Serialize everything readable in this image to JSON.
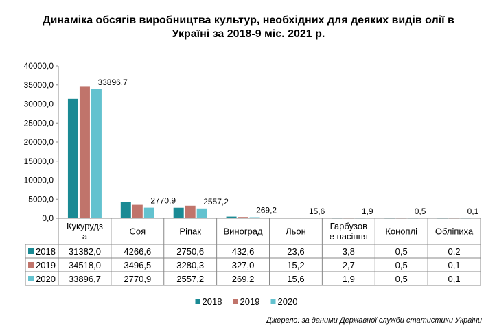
{
  "chart_data": {
    "type": "bar",
    "title_line1": "Динаміка обсягів виробництва культур, необхідних для деяких видів олії в",
    "title_line2": "Україні за 2018-9 міс. 2021 р.",
    "categories": [
      "Кукурудз а",
      "Соя",
      "Ріпак",
      "Виноград",
      "Льон",
      "Гарбузов е насіння",
      "Коноплі",
      "Обліпиха"
    ],
    "category_lines": [
      [
        "Кукурудз",
        "а"
      ],
      [
        "Соя"
      ],
      [
        "Ріпак"
      ],
      [
        "Виноград"
      ],
      [
        "Льон"
      ],
      [
        "Гарбузов",
        "е насіння"
      ],
      [
        "Коноплі"
      ],
      [
        "Обліпиха"
      ]
    ],
    "series": [
      {
        "name": "2018",
        "color": "#1a8a94",
        "values": [
          31382.0,
          4266.6,
          2750.6,
          432.6,
          23.6,
          3.8,
          0.5,
          0.2
        ],
        "labels": [
          "31382,0",
          "4266,6",
          "2750,6",
          "432,6",
          "23,6",
          "3,8",
          "0,5",
          "0,2"
        ]
      },
      {
        "name": "2019",
        "color": "#c0746b",
        "values": [
          34518.0,
          3496.5,
          3280.3,
          327.0,
          15.2,
          2.7,
          0.5,
          0.1
        ],
        "labels": [
          "34518,0",
          "3496,5",
          "3280,3",
          "327,0",
          "15,2",
          "2,7",
          "0,5",
          "0,1"
        ]
      },
      {
        "name": "2020",
        "color": "#63c2cf",
        "values": [
          33896.7,
          2770.9,
          2557.2,
          269.2,
          15.6,
          1.9,
          0.5,
          0.1
        ],
        "labels": [
          "33896,7",
          "2770,9",
          "2557,2",
          "269,2",
          "15,6",
          "1,9",
          "0,5",
          "0,1"
        ]
      }
    ],
    "data_labels_2020": [
      "33896,7",
      "2770,9",
      "2557,2",
      "269,2",
      "15,6",
      "1,9",
      "0,5",
      "0,1"
    ],
    "ylim": [
      0,
      40000
    ],
    "yticks": [
      "0,0",
      "5000,0",
      "10000,0",
      "15000,0",
      "20000,0",
      "25000,0",
      "30000,0",
      "35000,0",
      "40000,0"
    ],
    "legend": [
      "2018",
      "2019",
      "2020"
    ],
    "legend_position": "bottom",
    "grid": false,
    "source": "Джерело: за даними Державної служби статистики України"
  }
}
